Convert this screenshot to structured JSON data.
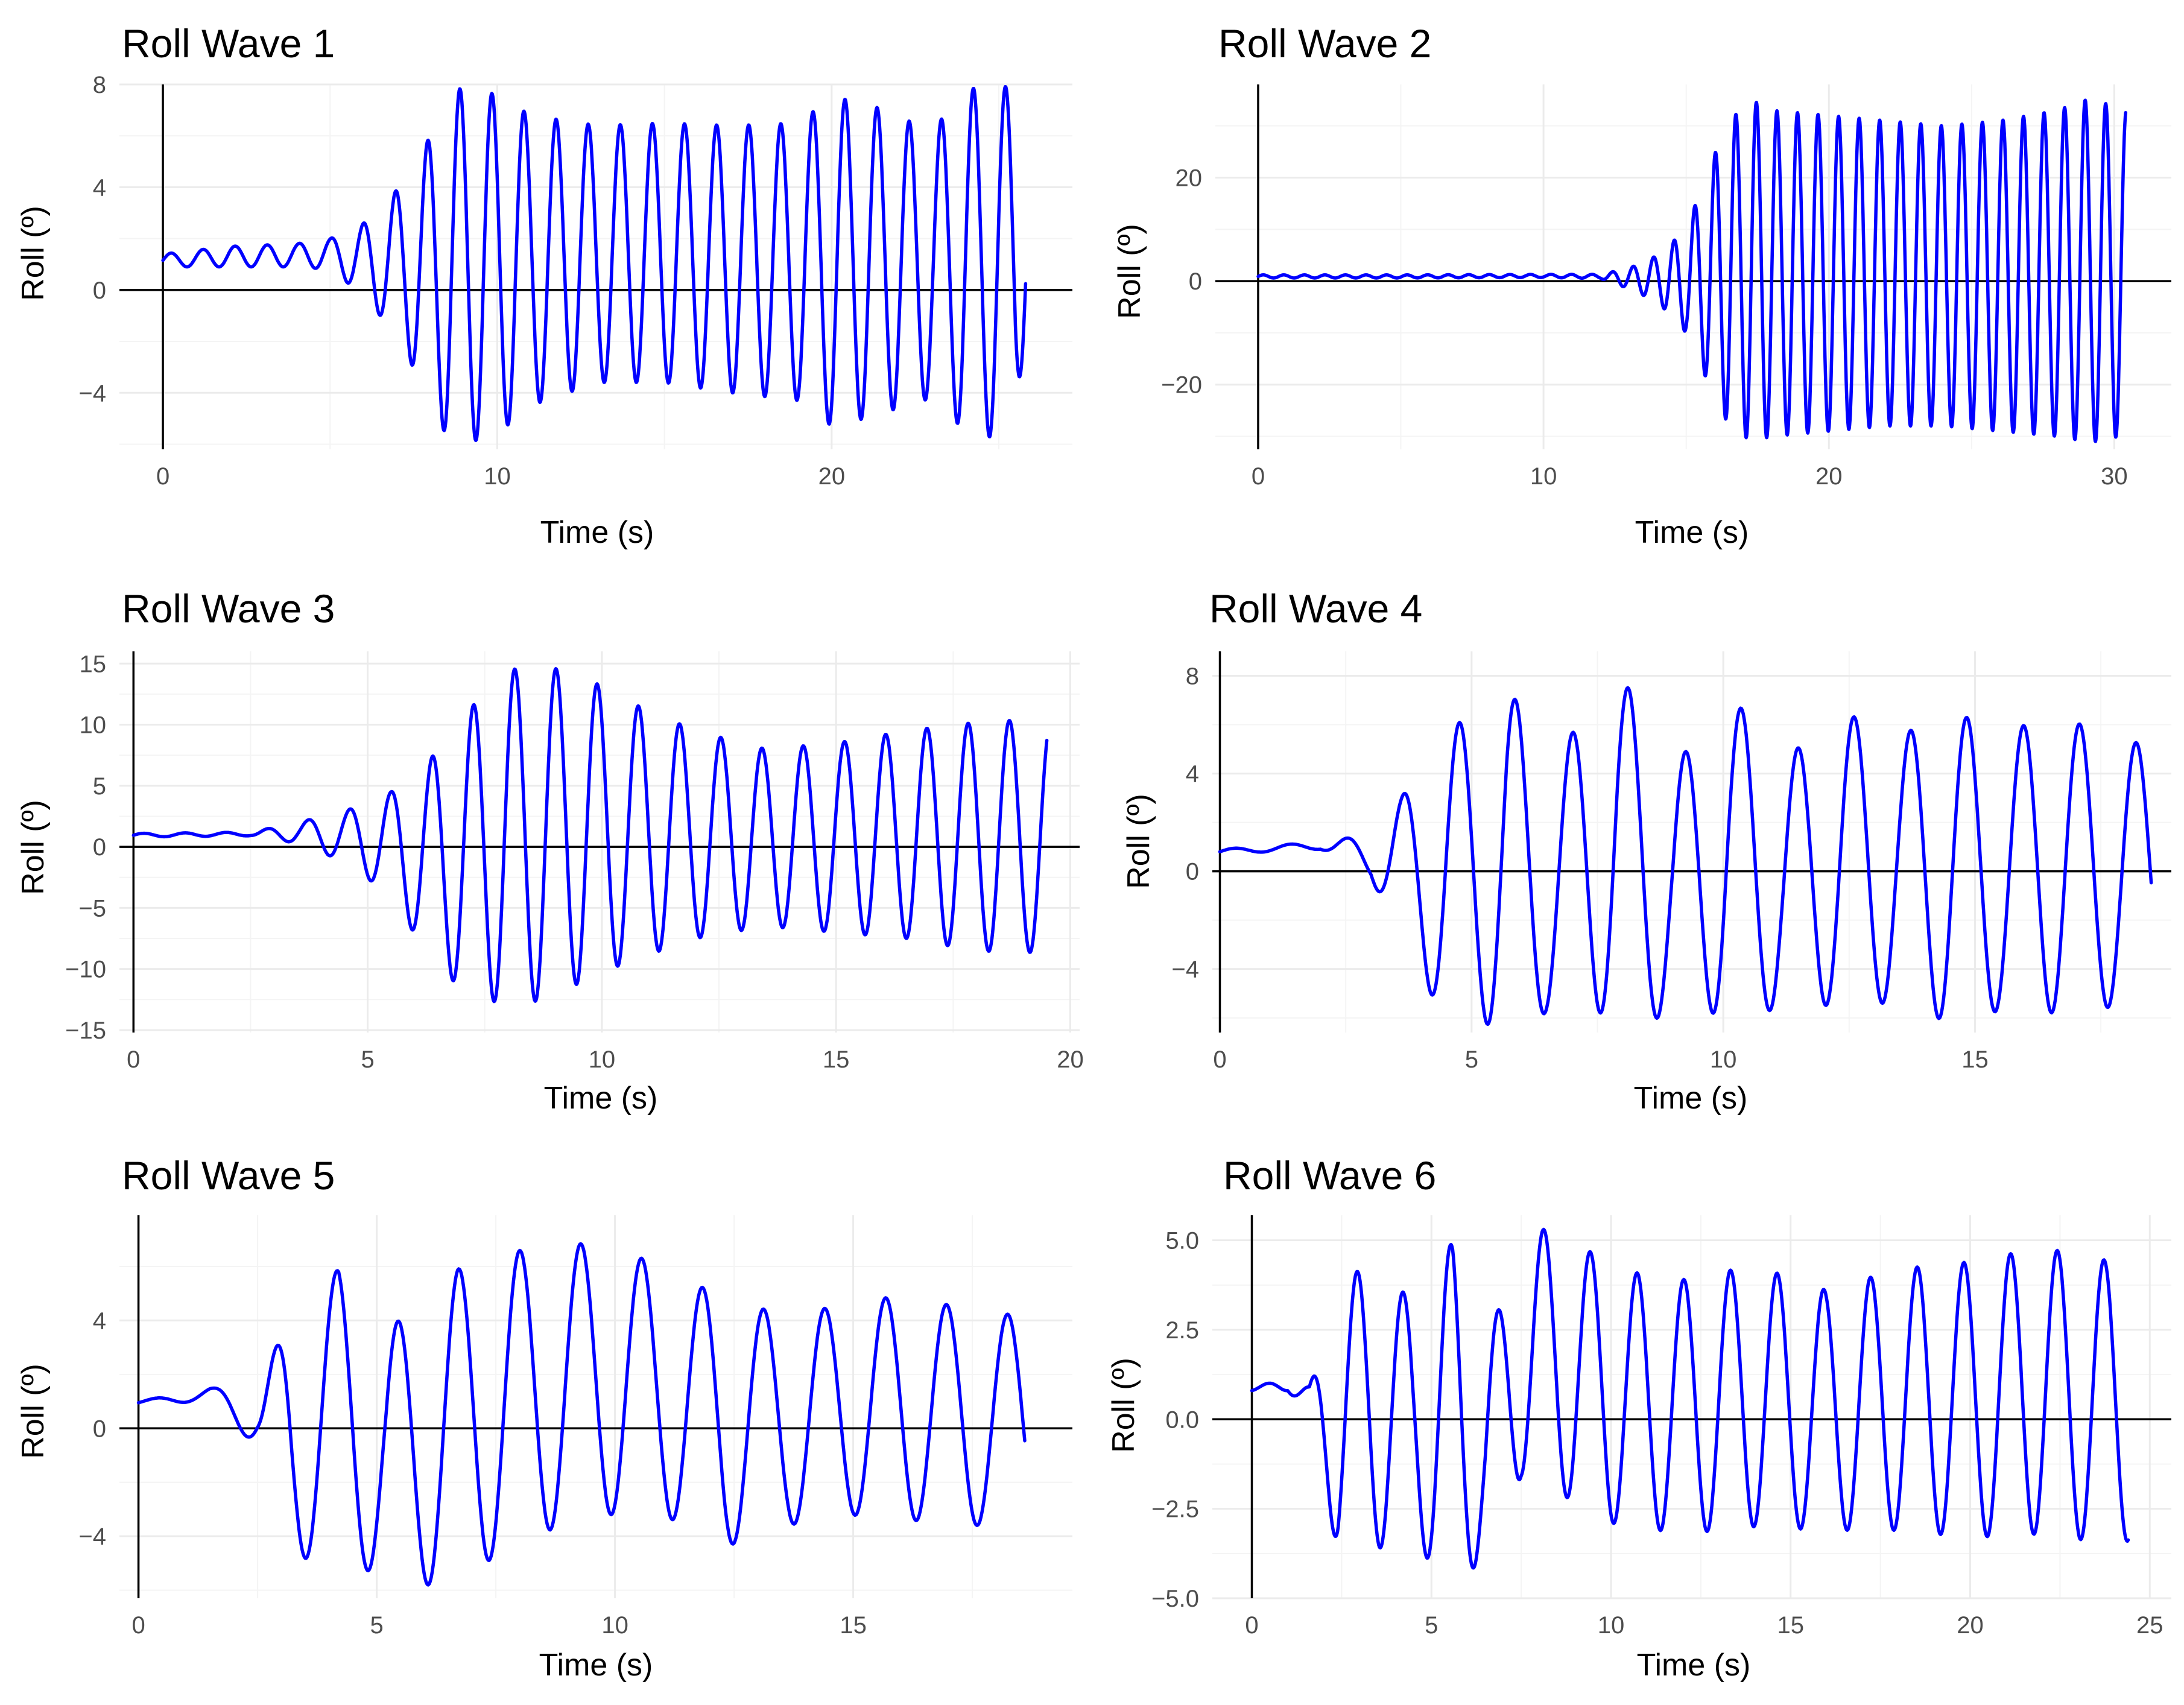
{
  "figure": {
    "panels": [
      {
        "title": "Roll Wave 1",
        "xlabel": "Time (s)",
        "ylabel": "Roll (º)"
      },
      {
        "title": "Roll Wave 2",
        "xlabel": "Time (s)",
        "ylabel": "Roll (º)"
      },
      {
        "title": "Roll Wave 3",
        "xlabel": "Time (s)",
        "ylabel": "Roll (º)"
      },
      {
        "title": "Roll Wave 4",
        "xlabel": "Time (s)",
        "ylabel": "Roll (º)"
      },
      {
        "title": "Roll Wave 5",
        "xlabel": "Time (s)",
        "ylabel": "Roll (º)"
      },
      {
        "title": "Roll Wave 6",
        "xlabel": "Time (s)",
        "ylabel": "Roll (º)"
      }
    ]
  },
  "colors": {
    "series": "#0000ff",
    "axis": "#000000",
    "grid": "#ebebeb",
    "tick_text": "#4d4d4d",
    "background": "#ffffff"
  },
  "chart_data": [
    {
      "type": "line",
      "title": "Roll Wave 1",
      "xlabel": "Time (s)",
      "ylabel": "Roll (º)",
      "xlim": [
        -1.3,
        27.2
      ],
      "ylim": [
        -6.2,
        8.0
      ],
      "xticks": [
        0,
        10,
        20
      ],
      "yticks": [
        -4,
        0,
        4,
        8
      ],
      "grid": true,
      "reference_lines": [
        "x=0",
        "y=0"
      ],
      "series": [
        {
          "period": 0.96,
          "x": [
            0,
            2,
            4,
            5,
            5.8,
            6.5,
            7.3,
            8.0,
            8.5,
            9.0,
            10,
            11,
            13,
            15,
            17,
            19,
            20,
            21,
            23,
            24,
            25,
            25.5,
            25.8
          ],
          "upper": [
            1.4,
            1.7,
            1.8,
            2.0,
            2.4,
            3.1,
            4.4,
            6.0,
            7.6,
            7.9,
            7.6,
            6.8,
            6.4,
            6.5,
            6.4,
            6.5,
            7.5,
            7.3,
            6.2,
            7.8,
            8.0,
            7.8,
            7.5
          ],
          "lower": [
            0.9,
            0.9,
            0.9,
            0.8,
            0.0,
            -1.0,
            -2.5,
            -4.5,
            -5.7,
            -6.0,
            -5.6,
            -4.5,
            -3.6,
            -3.6,
            -4.0,
            -4.3,
            -5.3,
            -5.0,
            -4.2,
            -5.5,
            -5.8,
            -5.7,
            -1.0
          ]
        }
      ]
    },
    {
      "type": "line",
      "title": "Roll Wave 2",
      "xlabel": "Time (s)",
      "ylabel": "Roll (º)",
      "xlim": [
        -1.5,
        32.0
      ],
      "ylim": [
        -32.5,
        38.0
      ],
      "xticks": [
        0,
        10,
        20,
        30
      ],
      "yticks": [
        -20,
        0,
        20
      ],
      "grid": true,
      "reference_lines": [
        "x=0",
        "y=0"
      ],
      "series": [
        {
          "period": 0.72,
          "x": [
            0,
            5,
            10,
            12,
            13,
            14,
            15,
            15.8,
            16.5,
            17.3,
            18,
            20,
            22,
            24,
            26,
            28,
            29,
            30,
            30.4
          ],
          "upper": [
            1.2,
            1.2,
            1.3,
            1.3,
            2.5,
            5.0,
            10,
            22,
            31,
            35,
            33,
            32,
            31,
            30,
            31,
            33,
            35,
            34,
            33
          ],
          "lower": [
            0.6,
            0.6,
            0.7,
            0.5,
            -1.5,
            -4.0,
            -10,
            -20,
            -28,
            -31,
            -30,
            -29,
            -28,
            -28,
            -29,
            -30,
            -31,
            -31,
            -25
          ]
        }
      ]
    },
    {
      "type": "line",
      "title": "Roll Wave 3",
      "xlabel": "Time (s)",
      "ylabel": "Roll (º)",
      "xlim": [
        -0.3,
        20.2
      ],
      "ylim": [
        -15.2,
        16.0
      ],
      "xticks": [
        0,
        5,
        10,
        15,
        20
      ],
      "yticks": [
        -15,
        -10,
        -5,
        0,
        5,
        10,
        15
      ],
      "grid": true,
      "reference_lines": [
        "x=0",
        "y=0"
      ],
      "series": [
        {
          "period": 0.88,
          "x": [
            0,
            2.5,
            3.5,
            4.5,
            5.5,
            6.3,
            7.1,
            8.0,
            8.8,
            9.6,
            10.5,
            12,
            13.5,
            15,
            16.5,
            18,
            19,
            19.5
          ],
          "upper": [
            1.1,
            1.2,
            2.0,
            2.9,
            4.5,
            7.0,
            11,
            14.5,
            14.8,
            14.0,
            12,
            9.5,
            8.0,
            8.5,
            9.5,
            10.2,
            10.4,
            10.2
          ],
          "lower": [
            0.8,
            0.9,
            0.3,
            -1.2,
            -4.0,
            -9.0,
            -12,
            -13,
            -12.5,
            -11,
            -9.5,
            -7.5,
            -6.5,
            -7.0,
            -7.5,
            -8.5,
            -8.7,
            -8.5
          ]
        }
      ]
    },
    {
      "type": "line",
      "title": "Roll Wave 4",
      "xlabel": "Time (s)",
      "ylabel": "Roll (º)",
      "xlim": [
        -0.15,
        18.9
      ],
      "ylim": [
        -6.6,
        9.0
      ],
      "xticks": [
        0,
        5,
        10,
        15
      ],
      "yticks": [
        -4,
        0,
        4,
        8
      ],
      "grid": true,
      "reference_lines": [
        "x=0",
        "y=0"
      ],
      "series": [
        {
          "period": 1.12,
          "x": [
            0,
            2,
            3,
            3.6,
            4.5,
            5.1,
            5.7,
            6.5,
            7.9,
            9.0,
            10.1,
            11.2,
            12.4,
            13.5,
            14.5,
            15.5,
            16.6,
            17.6,
            18.5
          ],
          "upper": [
            0.9,
            1.2,
            1.5,
            3.0,
            6.0,
            6.2,
            7.8,
            4.2,
            8.3,
            4.2,
            7.3,
            4.6,
            6.5,
            5.5,
            6.7,
            5.5,
            6.6,
            5.4,
            5.2
          ],
          "lower": [
            0.7,
            0.9,
            -0.2,
            -3.1,
            -6.0,
            -6.3,
            -6.2,
            -5.8,
            -5.8,
            -6.1,
            -5.7,
            -5.7,
            -5.4,
            -5.4,
            -6.2,
            -5.7,
            -5.8,
            -5.6,
            -5.0
          ]
        }
      ]
    },
    {
      "type": "line",
      "title": "Roll Wave 5",
      "xlabel": "Time (s)",
      "ylabel": "Roll (º)",
      "xlim": [
        -0.4,
        19.6
      ],
      "ylim": [
        -6.3,
        7.9
      ],
      "xticks": [
        0,
        5,
        10,
        15
      ],
      "yticks": [
        -4,
        0,
        4
      ],
      "grid": true,
      "reference_lines": [
        "x=0",
        "y=0"
      ],
      "series": [
        {
          "period": 1.28,
          "x": [
            0,
            1.5,
            2.5,
            3.2,
            4.2,
            5.2,
            6.7,
            8.2,
            9.7,
            11,
            12.3,
            13.6,
            14.9,
            16.2,
            17.5,
            18.6
          ],
          "upper": [
            1.0,
            1.5,
            1.4,
            4.3,
            5.9,
            3.6,
            5.9,
            6.7,
            6.9,
            6.0,
            4.8,
            4.2,
            4.6,
            5.0,
            4.3,
            4.2
          ],
          "lower": [
            0.9,
            1.0,
            -0.7,
            -5.2,
            -4.0,
            -6.1,
            -5.6,
            -4.0,
            -3.2,
            -3.2,
            -4.4,
            -3.6,
            -3.2,
            -3.4,
            -3.6,
            -3.6
          ]
        }
      ]
    },
    {
      "type": "line",
      "title": "Roll Wave 6",
      "xlabel": "Time (s)",
      "ylabel": "Roll (º)",
      "xlim": [
        -1.1,
        25.6
      ],
      "ylim": [
        -5.0,
        5.7
      ],
      "xticks": [
        0,
        5,
        10,
        15,
        20,
        25
      ],
      "yticks": [
        -5.0,
        -2.5,
        0.0,
        2.5,
        5.0
      ],
      "grid": true,
      "reference_lines": [
        "x=0",
        "y=0"
      ],
      "series": [
        {
          "period": 1.3,
          "x": [
            0,
            1.0,
            1.6,
            2.4,
            3.5,
            4.5,
            5.6,
            6.5,
            7.5,
            8.8,
            10,
            12,
            14,
            16,
            18,
            20,
            22,
            24,
            24.4
          ],
          "upper": [
            0.8,
            1.3,
            0.9,
            3.6,
            4.7,
            3.1,
            5.0,
            1.8,
            5.4,
            5.2,
            4.2,
            3.9,
            4.3,
            3.6,
            4.2,
            4.4,
            4.8,
            4.4,
            4.3
          ],
          "lower": [
            0.8,
            0.8,
            -0.2,
            -3.7,
            -3.6,
            -3.5,
            -4.6,
            -3.9,
            -1.6,
            -2.2,
            -2.9,
            -3.2,
            -3.0,
            -3.1,
            -3.1,
            -3.3,
            -3.2,
            -3.5,
            -3.4
          ]
        }
      ]
    }
  ]
}
